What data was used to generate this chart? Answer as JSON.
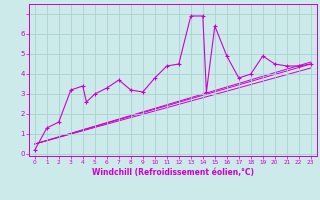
{
  "title": "",
  "xlabel": "Windchill (Refroidissement éolien,°C)",
  "ylabel": "",
  "bg_color": "#cceaea",
  "line_color": "#cc00cc",
  "grid_color": "#aad0d0",
  "xlim": [
    -0.5,
    23.5
  ],
  "ylim": [
    -0.1,
    7.5
  ],
  "xticks": [
    0,
    1,
    2,
    3,
    4,
    5,
    6,
    7,
    8,
    9,
    10,
    11,
    12,
    13,
    14,
    15,
    16,
    17,
    18,
    19,
    20,
    21,
    22,
    23
  ],
  "yticks": [
    0,
    1,
    2,
    3,
    4,
    5,
    6,
    7
  ],
  "series_x": [
    0,
    1,
    2,
    3,
    4,
    4.3,
    5,
    6,
    7,
    8,
    9,
    10,
    11,
    12,
    13,
    14,
    14.3,
    15,
    16,
    17,
    18,
    19,
    20,
    21,
    22,
    23
  ],
  "series_y": [
    0.2,
    1.3,
    1.6,
    3.2,
    3.4,
    2.6,
    3.0,
    3.3,
    3.7,
    3.2,
    3.1,
    3.8,
    4.4,
    4.5,
    6.9,
    6.9,
    3.1,
    6.4,
    4.9,
    3.8,
    4.0,
    4.9,
    4.5,
    4.4,
    4.4,
    4.5
  ],
  "reg_lines": [
    {
      "x": [
        0,
        23
      ],
      "y": [
        0.5,
        4.3
      ]
    },
    {
      "x": [
        0,
        23
      ],
      "y": [
        0.5,
        4.5
      ]
    },
    {
      "x": [
        0,
        23
      ],
      "y": [
        0.5,
        4.6
      ]
    }
  ]
}
